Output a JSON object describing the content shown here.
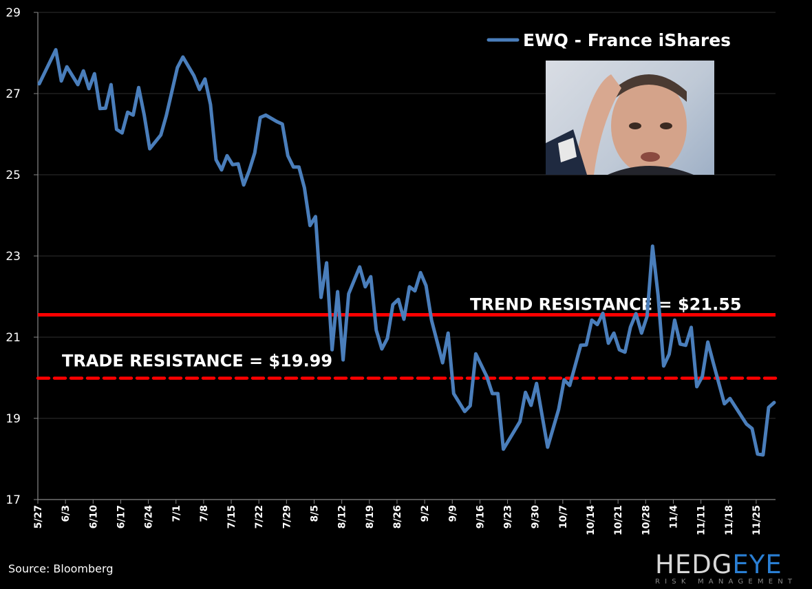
{
  "chart_data": {
    "type": "line",
    "title": "",
    "xlabel": "",
    "ylabel": "",
    "ylim": [
      17,
      29
    ],
    "yticks": [
      "17",
      "19",
      "21",
      "23",
      "25",
      "27",
      "29"
    ],
    "xticks": [
      "5/27",
      "6/3",
      "6/10",
      "6/17",
      "6/24",
      "7/1",
      "7/8",
      "7/15",
      "7/22",
      "7/29",
      "8/5",
      "8/12",
      "8/19",
      "8/26",
      "9/2",
      "9/9",
      "9/16",
      "9/23",
      "9/30",
      "10/7",
      "10/14",
      "10/21",
      "10/28",
      "11/4",
      "11/11",
      "11/18",
      "11/25"
    ],
    "grid": "horizontal",
    "legend_placement": "top-right",
    "series": [
      {
        "name": "EWQ - France iShares",
        "color": "#4a7ebb",
        "points": [
          [
            "5/27",
            27.24
          ],
          [
            "5/30",
            28.08
          ],
          [
            "5/31",
            27.31
          ],
          [
            "6/3",
            27.66
          ],
          [
            "6/5",
            27.22
          ],
          [
            "6/6",
            27.56
          ],
          [
            "6/7",
            27.12
          ],
          [
            "6/10",
            27.49
          ],
          [
            "6/11",
            26.63
          ],
          [
            "6/12",
            26.64
          ],
          [
            "6/13",
            27.22
          ],
          [
            "6/14",
            26.12
          ],
          [
            "6/17",
            26.03
          ],
          [
            "6/18",
            26.54
          ],
          [
            "6/19",
            26.47
          ],
          [
            "6/20",
            27.15
          ],
          [
            "6/21",
            26.47
          ],
          [
            "6/24",
            25.64
          ],
          [
            "6/26",
            25.98
          ],
          [
            "6/27",
            26.46
          ],
          [
            "7/1",
            27.64
          ],
          [
            "7/2",
            27.9
          ],
          [
            "7/4",
            27.44
          ],
          [
            "7/5",
            27.1
          ],
          [
            "7/8",
            27.36
          ],
          [
            "7/9",
            26.73
          ],
          [
            "7/10",
            25.37
          ],
          [
            "7/11",
            25.12
          ],
          [
            "7/12",
            25.47
          ],
          [
            "7/15",
            25.25
          ],
          [
            "7/16",
            25.27
          ],
          [
            "7/17",
            24.75
          ],
          [
            "7/18",
            25.1
          ],
          [
            "7/19",
            25.54
          ],
          [
            "7/22",
            26.41
          ],
          [
            "7/23",
            26.47
          ],
          [
            "7/25",
            26.31
          ],
          [
            "7/26",
            26.25
          ],
          [
            "7/29",
            25.47
          ],
          [
            "7/30",
            25.19
          ],
          [
            "7/31",
            25.19
          ],
          [
            "8/1",
            24.68
          ],
          [
            "8/2",
            23.75
          ],
          [
            "8/5",
            23.97
          ],
          [
            "8/6",
            21.98
          ],
          [
            "8/7",
            22.83
          ],
          [
            "8/8",
            20.69
          ],
          [
            "8/9",
            22.12
          ],
          [
            "8/12",
            20.44
          ],
          [
            "8/13",
            22.07
          ],
          [
            "8/15",
            22.73
          ],
          [
            "8/16",
            22.24
          ],
          [
            "8/19",
            22.49
          ],
          [
            "8/20",
            21.17
          ],
          [
            "8/21",
            20.71
          ],
          [
            "8/22",
            20.97
          ],
          [
            "8/23",
            21.8
          ],
          [
            "8/26",
            21.93
          ],
          [
            "8/27",
            21.44
          ],
          [
            "8/28",
            22.24
          ],
          [
            "8/29",
            22.14
          ],
          [
            "8/30",
            22.59
          ],
          [
            "9/2",
            22.27
          ],
          [
            "9/3",
            21.42
          ],
          [
            "9/5",
            20.37
          ],
          [
            "9/6",
            21.1
          ],
          [
            "9/9",
            19.61
          ],
          [
            "9/11",
            19.17
          ],
          [
            "9/12",
            19.31
          ],
          [
            "9/13",
            20.59
          ],
          [
            "9/17",
            20.03
          ],
          [
            "9/18",
            19.61
          ],
          [
            "9/19",
            19.61
          ],
          [
            "9/20",
            18.24
          ],
          [
            "9/25",
            18.92
          ],
          [
            "9/26",
            19.64
          ],
          [
            "9/27",
            19.32
          ],
          [
            "9/30",
            19.86
          ],
          [
            "10/1",
            19.08
          ],
          [
            "10/2",
            18.29
          ],
          [
            "10/4",
            19.22
          ],
          [
            "10/7",
            19.95
          ],
          [
            "10/8",
            19.81
          ],
          [
            "10/10",
            20.8
          ],
          [
            "10/11",
            20.81
          ],
          [
            "10/14",
            21.42
          ],
          [
            "10/15",
            21.31
          ],
          [
            "10/16",
            21.59
          ],
          [
            "10/17",
            20.85
          ],
          [
            "10/18",
            21.1
          ],
          [
            "10/21",
            20.69
          ],
          [
            "10/22",
            20.63
          ],
          [
            "10/23",
            21.25
          ],
          [
            "10/24",
            21.58
          ],
          [
            "10/25",
            21.1
          ],
          [
            "10/28",
            21.51
          ],
          [
            "10/29",
            23.24
          ],
          [
            "10/30",
            22.02
          ],
          [
            "10/31",
            20.29
          ],
          [
            "11/1",
            20.58
          ],
          [
            "11/4",
            21.42
          ],
          [
            "11/5",
            20.83
          ],
          [
            "11/6",
            20.8
          ],
          [
            "11/7",
            21.24
          ],
          [
            "11/8",
            19.78
          ],
          [
            "11/11",
            20.03
          ],
          [
            "11/12",
            20.88
          ],
          [
            "11/13",
            20.36
          ],
          [
            "11/15",
            19.36
          ],
          [
            "11/18",
            19.49
          ],
          [
            "11/21",
            18.86
          ],
          [
            "11/22",
            18.75
          ],
          [
            "11/25",
            18.12
          ],
          [
            "11/26",
            18.1
          ],
          [
            "11/27",
            19.27
          ],
          [
            "11/28",
            19.39
          ]
        ]
      }
    ],
    "reference_lines": [
      {
        "label": "TREND RESISTANCE = $21.55",
        "value": 21.55,
        "style": "solid",
        "color": "#ff0000"
      },
      {
        "label": "TRADE RESISTANCE = $19.99",
        "value": 19.99,
        "style": "dashed",
        "color": "#ff0000"
      }
    ]
  },
  "footer": {
    "source": "Source: Bloomberg",
    "logo_text": "HEDGEYE",
    "logo_part_a": "HEDG",
    "logo_part_b": "EYE",
    "logo_subtitle": "RISK MANAGEMENT"
  },
  "colors": {
    "background": "#000000",
    "line": "#4a7ebb",
    "resistance": "#ff0000",
    "logo_accent": "#2a7fd4"
  }
}
